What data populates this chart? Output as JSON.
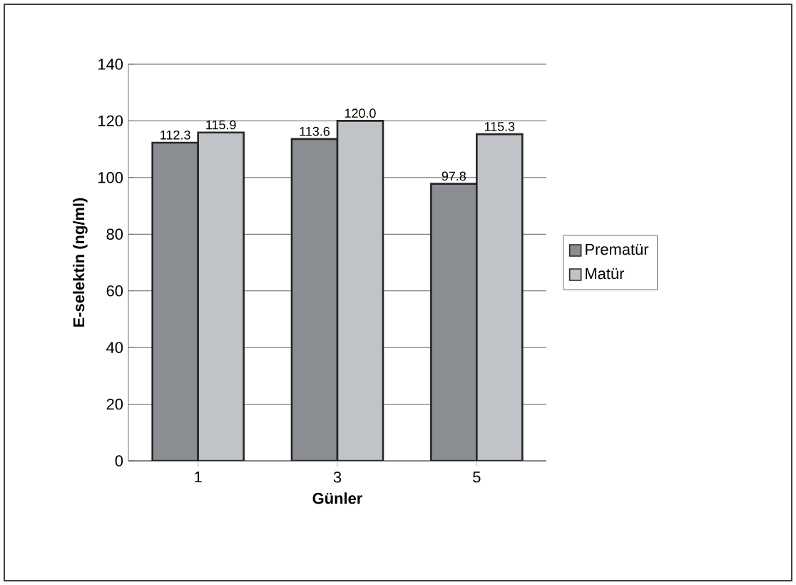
{
  "chart_data": {
    "type": "bar",
    "xlabel": "Günler",
    "ylabel": "E-selektin (ng/ml)",
    "categories": [
      "1",
      "3",
      "5"
    ],
    "series": [
      {
        "name": "Prematür",
        "color": "#8a8e93",
        "values": [
          112.3,
          113.6,
          97.8
        ]
      },
      {
        "name": "Matür",
        "color": "#c0c4c8",
        "values": [
          115.9,
          120.0,
          115.3
        ]
      }
    ],
    "value_labels": [
      [
        "112.3",
        "113.6",
        "97.8"
      ],
      [
        "115.9",
        "120.0",
        "115.3"
      ]
    ],
    "ylim": [
      0,
      140
    ],
    "yticks": [
      0,
      20,
      40,
      60,
      80,
      100,
      120,
      140
    ],
    "grid": "y",
    "legend": "right"
  }
}
